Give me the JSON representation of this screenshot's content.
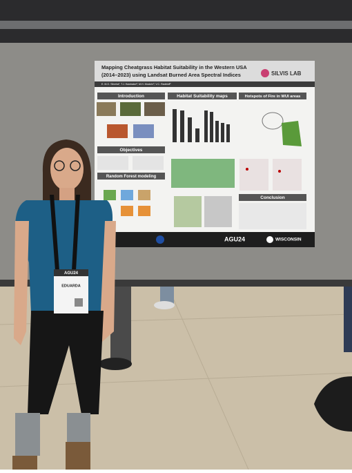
{
  "poster": {
    "title_lines": [
      "Mapping Cheatgrass Habitat Suitability in the Western USA",
      "(2014–2023) using Landsat Burned Area Spectral Indices"
    ],
    "authors": "E. M.O. Silveira¹, T.J. Hawbaker², M.H. Mockrin³, V.C. Radeloff¹",
    "logo": "SILVIS LAB",
    "sections": {
      "introduction": "Introduction",
      "habitat": "Habitat Suitability maps",
      "hotspots": "Hotspots of Fire in WUI areas",
      "objectives": "Objectives",
      "random_forest": "Random Forest modeling",
      "conclusion": "Conclusion"
    },
    "footer": {
      "conference": "AGU24",
      "university": "WISCONSIN"
    }
  },
  "badge": {
    "event": "AGU24",
    "name": "EDUARDA"
  }
}
